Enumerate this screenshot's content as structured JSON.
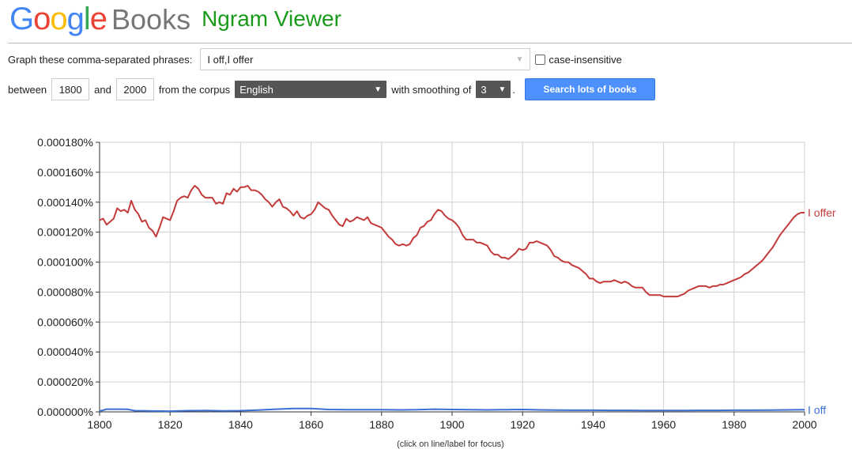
{
  "header": {
    "logo_letters": [
      {
        "ch": "G",
        "color": "#4285f4"
      },
      {
        "ch": "o",
        "color": "#ea4335"
      },
      {
        "ch": "o",
        "color": "#fbbc05"
      },
      {
        "ch": "g",
        "color": "#4285f4"
      },
      {
        "ch": "l",
        "color": "#34a853"
      },
      {
        "ch": "e",
        "color": "#ea4335"
      }
    ],
    "books": "Books",
    "app_name": "Ngram Viewer"
  },
  "form": {
    "phrases_label": "Graph these comma-separated phrases:",
    "phrases_value": "I off,I offer",
    "case_insensitive_label": "case-insensitive",
    "between_label": "between",
    "start_year": "1800",
    "and_label": "and",
    "end_year": "2000",
    "corpus_label": "from the corpus",
    "corpus_value": "English",
    "smoothing_label": "with smoothing of",
    "smoothing_value": "3",
    "period": ".",
    "search_button": "Search lots of books"
  },
  "footnote": "(click on line/label for focus)",
  "chart_data": {
    "type": "line",
    "x_range": [
      1800,
      2000
    ],
    "y_range": [
      0,
      0.00018
    ],
    "y_ticks": [
      "0.000000%",
      "0.000020%",
      "0.000040%",
      "0.000060%",
      "0.000080%",
      "0.000100%",
      "0.000120%",
      "0.000140%",
      "0.000160%",
      "0.000180%"
    ],
    "x_ticks": [
      "1800",
      "1820",
      "1840",
      "1860",
      "1880",
      "1900",
      "1920",
      "1940",
      "1960",
      "1980",
      "2000"
    ],
    "grid": true,
    "series": [
      {
        "name": "I offer",
        "color": "#c43b3b",
        "points": [
          [
            1800,
            0.000128
          ],
          [
            1801,
            0.000129
          ],
          [
            1802,
            0.000125
          ],
          [
            1803,
            0.000127
          ],
          [
            1804,
            0.000129
          ],
          [
            1805,
            0.000136
          ],
          [
            1806,
            0.000134
          ],
          [
            1807,
            0.000135
          ],
          [
            1808,
            0.000133
          ],
          [
            1809,
            0.000141
          ],
          [
            1810,
            0.000135
          ],
          [
            1811,
            0.000132
          ],
          [
            1812,
            0.000127
          ],
          [
            1813,
            0.000128
          ],
          [
            1814,
            0.000123
          ],
          [
            1815,
            0.000121
          ],
          [
            1816,
            0.000117
          ],
          [
            1817,
            0.000123
          ],
          [
            1818,
            0.00013
          ],
          [
            1819,
            0.000129
          ],
          [
            1820,
            0.000128
          ],
          [
            1821,
            0.000134
          ],
          [
            1822,
            0.000141
          ],
          [
            1823,
            0.000143
          ],
          [
            1824,
            0.000144
          ],
          [
            1825,
            0.000143
          ],
          [
            1826,
            0.000148
          ],
          [
            1827,
            0.000151
          ],
          [
            1828,
            0.000149
          ],
          [
            1829,
            0.000145
          ],
          [
            1830,
            0.000143
          ],
          [
            1831,
            0.000143
          ],
          [
            1832,
            0.000143
          ],
          [
            1833,
            0.000139
          ],
          [
            1834,
            0.00014
          ],
          [
            1835,
            0.000139
          ],
          [
            1836,
            0.000146
          ],
          [
            1837,
            0.000145
          ],
          [
            1838,
            0.000149
          ],
          [
            1839,
            0.000147
          ],
          [
            1840,
            0.00015
          ],
          [
            1841,
            0.00015
          ],
          [
            1842,
            0.000151
          ],
          [
            1843,
            0.000148
          ],
          [
            1844,
            0.000148
          ],
          [
            1845,
            0.000147
          ],
          [
            1846,
            0.000145
          ],
          [
            1847,
            0.000142
          ],
          [
            1848,
            0.00014
          ],
          [
            1849,
            0.000137
          ],
          [
            1850,
            0.00014
          ],
          [
            1851,
            0.000142
          ],
          [
            1852,
            0.000137
          ],
          [
            1853,
            0.000136
          ],
          [
            1854,
            0.000134
          ],
          [
            1855,
            0.000131
          ],
          [
            1856,
            0.000134
          ],
          [
            1857,
            0.00013
          ],
          [
            1858,
            0.000129
          ],
          [
            1859,
            0.000131
          ],
          [
            1860,
            0.000132
          ],
          [
            1861,
            0.000135
          ],
          [
            1862,
            0.00014
          ],
          [
            1863,
            0.000138
          ],
          [
            1864,
            0.000136
          ],
          [
            1865,
            0.000135
          ],
          [
            1866,
            0.000131
          ],
          [
            1867,
            0.000128
          ],
          [
            1868,
            0.000125
          ],
          [
            1869,
            0.000124
          ],
          [
            1870,
            0.000129
          ],
          [
            1871,
            0.000127
          ],
          [
            1872,
            0.000128
          ],
          [
            1873,
            0.00013
          ],
          [
            1874,
            0.000129
          ],
          [
            1875,
            0.000128
          ],
          [
            1876,
            0.00013
          ],
          [
            1877,
            0.000126
          ],
          [
            1878,
            0.000125
          ],
          [
            1879,
            0.000124
          ],
          [
            1880,
            0.000123
          ],
          [
            1881,
            0.00012
          ],
          [
            1882,
            0.000117
          ],
          [
            1883,
            0.000115
          ],
          [
            1884,
            0.000112
          ],
          [
            1885,
            0.000111
          ],
          [
            1886,
            0.000112
          ],
          [
            1887,
            0.000111
          ],
          [
            1888,
            0.000112
          ],
          [
            1889,
            0.000116
          ],
          [
            1890,
            0.000118
          ],
          [
            1891,
            0.000123
          ],
          [
            1892,
            0.000124
          ],
          [
            1893,
            0.000127
          ],
          [
            1894,
            0.000128
          ],
          [
            1895,
            0.000132
          ],
          [
            1896,
            0.000135
          ],
          [
            1897,
            0.000134
          ],
          [
            1898,
            0.000131
          ],
          [
            1899,
            0.000129
          ],
          [
            1900,
            0.000128
          ],
          [
            1901,
            0.000126
          ],
          [
            1902,
            0.000123
          ],
          [
            1903,
            0.000118
          ],
          [
            1904,
            0.000115
          ],
          [
            1905,
            0.000115
          ],
          [
            1906,
            0.000115
          ],
          [
            1907,
            0.000113
          ],
          [
            1908,
            0.000113
          ],
          [
            1909,
            0.000112
          ],
          [
            1910,
            0.000111
          ],
          [
            1911,
            0.000107
          ],
          [
            1912,
            0.000105
          ],
          [
            1913,
            0.000105
          ],
          [
            1914,
            0.000103
          ],
          [
            1915,
            0.000103
          ],
          [
            1916,
            0.000102
          ],
          [
            1917,
            0.000104
          ],
          [
            1918,
            0.000106
          ],
          [
            1919,
            0.000109
          ],
          [
            1920,
            0.000108
          ],
          [
            1921,
            0.000109
          ],
          [
            1922,
            0.000113
          ],
          [
            1923,
            0.000113
          ],
          [
            1924,
            0.000114
          ],
          [
            1925,
            0.000113
          ],
          [
            1926,
            0.000112
          ],
          [
            1927,
            0.000111
          ],
          [
            1928,
            0.000108
          ],
          [
            1929,
            0.000104
          ],
          [
            1930,
            0.000103
          ],
          [
            1931,
            0.000101
          ],
          [
            1932,
            0.0001
          ],
          [
            1933,
            0.0001
          ],
          [
            1934,
            9.8e-05
          ],
          [
            1935,
            9.7e-05
          ],
          [
            1936,
            9.6e-05
          ],
          [
            1937,
            9.4e-05
          ],
          [
            1938,
            9.2e-05
          ],
          [
            1939,
            8.9e-05
          ],
          [
            1940,
            8.9e-05
          ],
          [
            1941,
            8.7e-05
          ],
          [
            1942,
            8.6e-05
          ],
          [
            1943,
            8.7e-05
          ],
          [
            1944,
            8.7e-05
          ],
          [
            1945,
            8.7e-05
          ],
          [
            1946,
            8.8e-05
          ],
          [
            1947,
            8.7e-05
          ],
          [
            1948,
            8.6e-05
          ],
          [
            1949,
            8.7e-05
          ],
          [
            1950,
            8.6e-05
          ],
          [
            1951,
            8.4e-05
          ],
          [
            1952,
            8.3e-05
          ],
          [
            1953,
            8.3e-05
          ],
          [
            1954,
            8.3e-05
          ],
          [
            1955,
            8e-05
          ],
          [
            1956,
            7.8e-05
          ],
          [
            1957,
            7.8e-05
          ],
          [
            1958,
            7.8e-05
          ],
          [
            1959,
            7.8e-05
          ],
          [
            1960,
            7.7e-05
          ],
          [
            1961,
            7.7e-05
          ],
          [
            1962,
            7.7e-05
          ],
          [
            1963,
            7.7e-05
          ],
          [
            1964,
            7.7e-05
          ],
          [
            1965,
            7.8e-05
          ],
          [
            1966,
            7.9e-05
          ],
          [
            1967,
            8.1e-05
          ],
          [
            1968,
            8.2e-05
          ],
          [
            1969,
            8.3e-05
          ],
          [
            1970,
            8.4e-05
          ],
          [
            1971,
            8.4e-05
          ],
          [
            1972,
            8.4e-05
          ],
          [
            1973,
            8.3e-05
          ],
          [
            1974,
            8.4e-05
          ],
          [
            1975,
            8.4e-05
          ],
          [
            1976,
            8.5e-05
          ],
          [
            1977,
            8.5e-05
          ],
          [
            1978,
            8.6e-05
          ],
          [
            1979,
            8.7e-05
          ],
          [
            1980,
            8.8e-05
          ],
          [
            1981,
            8.9e-05
          ],
          [
            1982,
            9e-05
          ],
          [
            1983,
            9.2e-05
          ],
          [
            1984,
            9.3e-05
          ],
          [
            1985,
            9.5e-05
          ],
          [
            1986,
            9.7e-05
          ],
          [
            1987,
            9.9e-05
          ],
          [
            1988,
            0.000101
          ],
          [
            1989,
            0.000104
          ],
          [
            1990,
            0.000107
          ],
          [
            1991,
            0.00011
          ],
          [
            1992,
            0.000114
          ],
          [
            1993,
            0.000118
          ],
          [
            1994,
            0.000121
          ],
          [
            1995,
            0.000124
          ],
          [
            1996,
            0.000127
          ],
          [
            1997,
            0.00013
          ],
          [
            1998,
            0.000132
          ],
          [
            1999,
            0.000133
          ],
          [
            2000,
            0.000133
          ]
        ]
      },
      {
        "name": "I off",
        "color": "#3b6fd4",
        "points": [
          [
            1800,
            5e-07
          ],
          [
            1802,
            1.8e-06
          ],
          [
            1804,
            1.8e-06
          ],
          [
            1806,
            1.8e-06
          ],
          [
            1808,
            1.7e-06
          ],
          [
            1810,
            8e-07
          ],
          [
            1815,
            6e-07
          ],
          [
            1820,
            5e-07
          ],
          [
            1825,
            8e-07
          ],
          [
            1830,
            9e-07
          ],
          [
            1835,
            7e-07
          ],
          [
            1840,
            8e-07
          ],
          [
            1845,
            1.2e-06
          ],
          [
            1850,
            1.8e-06
          ],
          [
            1855,
            2.2e-06
          ],
          [
            1860,
            2.2e-06
          ],
          [
            1865,
            1.6e-06
          ],
          [
            1870,
            1.4e-06
          ],
          [
            1875,
            1.5e-06
          ],
          [
            1880,
            1.5e-06
          ],
          [
            1885,
            1.3e-06
          ],
          [
            1890,
            1.4e-06
          ],
          [
            1895,
            1.8e-06
          ],
          [
            1900,
            1.6e-06
          ],
          [
            1905,
            1.4e-06
          ],
          [
            1910,
            1.3e-06
          ],
          [
            1915,
            1.5e-06
          ],
          [
            1920,
            1.6e-06
          ],
          [
            1925,
            1.3e-06
          ],
          [
            1930,
            1.2e-06
          ],
          [
            1935,
            1.1e-06
          ],
          [
            1940,
            1.1e-06
          ],
          [
            1945,
            1e-06
          ],
          [
            1950,
            1e-06
          ],
          [
            1955,
            9e-07
          ],
          [
            1960,
            9e-07
          ],
          [
            1965,
            9e-07
          ],
          [
            1970,
            1e-06
          ],
          [
            1975,
            1e-06
          ],
          [
            1980,
            1.1e-06
          ],
          [
            1985,
            1.1e-06
          ],
          [
            1990,
            1.2e-06
          ],
          [
            1995,
            1.3e-06
          ],
          [
            2000,
            1.4e-06
          ]
        ]
      }
    ]
  }
}
